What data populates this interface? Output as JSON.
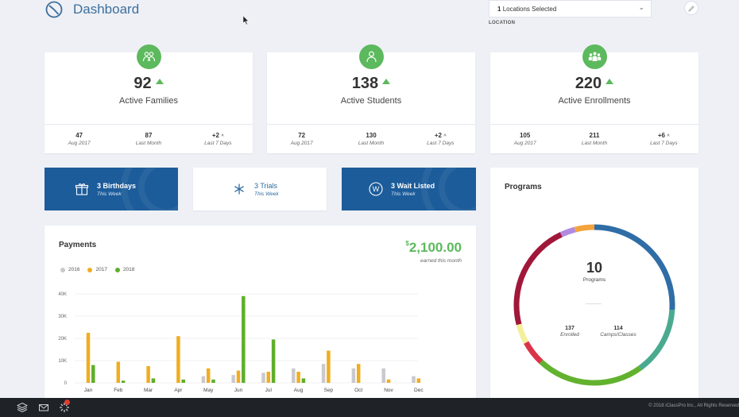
{
  "header": {
    "title": "Dashboard",
    "location_select": {
      "count": "1",
      "text": "Locations Selected"
    },
    "location_label": "LOCATION"
  },
  "stats": [
    {
      "value": "92",
      "label": "Active Families",
      "sub": [
        {
          "value": "47",
          "label": "Aug 2017"
        },
        {
          "value": "87",
          "label": "Last Month"
        },
        {
          "value": "+2",
          "label": "Last 7 Days"
        }
      ]
    },
    {
      "value": "138",
      "label": "Active Students",
      "sub": [
        {
          "value": "72",
          "label": "Aug 2017"
        },
        {
          "value": "130",
          "label": "Last Month"
        },
        {
          "value": "+2",
          "label": "Last 7 Days"
        }
      ]
    },
    {
      "value": "220",
      "label": "Active Enrollments",
      "sub": [
        {
          "value": "105",
          "label": "Aug 2017"
        },
        {
          "value": "211",
          "label": "Last Month"
        },
        {
          "value": "+6",
          "label": "Last 7 Days"
        }
      ]
    }
  ],
  "mini": {
    "birthdays": {
      "title": "3 Birthdays",
      "sub": "This Week"
    },
    "trials": {
      "title": "3 Trials",
      "sub": "This Week"
    },
    "waitlist": {
      "title": "3 Wait Listed",
      "sub": "This Week"
    }
  },
  "payments": {
    "title": "Payments",
    "currency": "$",
    "amount": "2,100.00",
    "sub": "earned this month"
  },
  "programs": {
    "title": "Programs",
    "count": "10",
    "count_label": "Programs",
    "enrolled": {
      "value": "137",
      "label": "Enrolled"
    },
    "camps": {
      "value": "114",
      "label": "Camps/Classes"
    }
  },
  "footer": {
    "copyright": "© 2018 iClassPro Inc., All Rights Reserved"
  },
  "colors": {
    "accent_green": "#5cb95d",
    "brand_blue": "#1c5c9a",
    "y2016": "#c9c9cf",
    "y2017": "#f0ad1f",
    "y2018": "#5fae2c"
  },
  "chart_data": {
    "type": "bar",
    "title": "Payments",
    "categories": [
      "Jan",
      "Feb",
      "Mar",
      "Apr",
      "May",
      "Jun",
      "Jul",
      "Aug",
      "Sep",
      "Oct",
      "Nov",
      "Dec"
    ],
    "yticks": [
      "40K",
      "30K",
      "20K",
      "10K",
      "0"
    ],
    "ylim": [
      0,
      40000
    ],
    "grid": true,
    "legend": "top-left",
    "series": [
      {
        "name": "2016",
        "color": "#c9c9cf",
        "values": [
          0,
          0,
          0,
          0,
          3000,
          3500,
          4500,
          6500,
          8500,
          6500,
          6500,
          3000
        ]
      },
      {
        "name": "2017",
        "color": "#f0ad1f",
        "values": [
          22500,
          9500,
          7500,
          21000,
          6500,
          5500,
          5000,
          5000,
          14500,
          8500,
          1500,
          2000
        ]
      },
      {
        "name": "2018",
        "color": "#5fae2c",
        "values": [
          8000,
          1000,
          2000,
          1500,
          1500,
          39000,
          19500,
          2000,
          0,
          0,
          0,
          0
        ]
      }
    ]
  },
  "programs_chart": {
    "type": "pie",
    "segments": [
      {
        "color": "#2f6da6",
        "value": 26
      },
      {
        "color": "#4aaa90",
        "value": 14
      },
      {
        "color": "#62b22e",
        "value": 22
      },
      {
        "color": "#d9344a",
        "value": 5
      },
      {
        "color": "#f4ef9a",
        "value": 4
      },
      {
        "color": "#a1173a",
        "value": 22
      },
      {
        "color": "#b18ae0",
        "value": 3
      },
      {
        "color": "#f2a33c",
        "value": 4
      }
    ]
  }
}
